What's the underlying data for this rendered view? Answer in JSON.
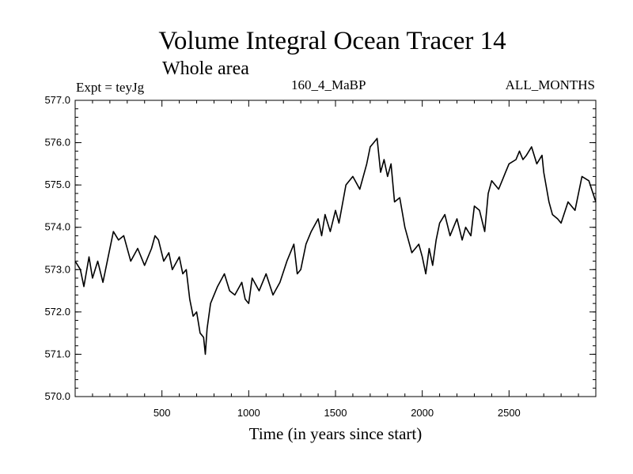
{
  "header": {
    "title": "Volume Integral Ocean Tracer 14",
    "subtitle": "Whole area",
    "expt": "Expt = teyJg",
    "run": "160_4_MaBP",
    "months": "ALL_MONTHS"
  },
  "chart_data": {
    "type": "line",
    "title": "Volume Integral Ocean Tracer 14",
    "subtitle": "Whole area",
    "xlabel": "Time (in years since start)",
    "ylabel": "",
    "xlim": [
      0,
      3000
    ],
    "ylim": [
      570.0,
      577.0
    ],
    "xticks": [
      500,
      1000,
      1500,
      2000,
      2500
    ],
    "yticks": [
      "570.0",
      "571.0",
      "572.0",
      "573.0",
      "574.0",
      "575.0",
      "576.0",
      "577.0"
    ],
    "grid": false,
    "series": [
      {
        "name": "Volume Integral Ocean Tracer 14",
        "x": [
          0,
          30,
          50,
          80,
          100,
          130,
          160,
          190,
          220,
          250,
          280,
          320,
          360,
          400,
          440,
          460,
          480,
          510,
          540,
          560,
          600,
          620,
          640,
          660,
          680,
          700,
          720,
          740,
          750,
          760,
          780,
          820,
          860,
          890,
          920,
          960,
          980,
          1000,
          1020,
          1060,
          1100,
          1140,
          1180,
          1220,
          1260,
          1280,
          1300,
          1330,
          1360,
          1400,
          1420,
          1440,
          1470,
          1500,
          1520,
          1560,
          1600,
          1640,
          1680,
          1700,
          1720,
          1740,
          1760,
          1780,
          1800,
          1820,
          1840,
          1870,
          1900,
          1940,
          1980,
          2000,
          2020,
          2040,
          2060,
          2080,
          2100,
          2130,
          2160,
          2200,
          2230,
          2250,
          2280,
          2300,
          2330,
          2360,
          2380,
          2400,
          2440,
          2480,
          2500,
          2540,
          2560,
          2580,
          2600,
          2630,
          2660,
          2690,
          2700,
          2730,
          2750,
          2780,
          2800,
          2840,
          2880,
          2920,
          2960,
          3000
        ],
        "y": [
          573.2,
          573.0,
          572.6,
          573.3,
          572.8,
          573.2,
          572.7,
          573.3,
          573.9,
          573.7,
          573.8,
          573.2,
          573.5,
          573.1,
          573.5,
          573.8,
          573.7,
          573.2,
          573.4,
          573.0,
          573.3,
          572.9,
          573.0,
          572.3,
          571.9,
          572.0,
          571.5,
          571.4,
          571.0,
          571.6,
          572.2,
          572.6,
          572.9,
          572.5,
          572.4,
          572.7,
          572.3,
          572.2,
          572.8,
          572.5,
          572.9,
          572.4,
          572.7,
          573.2,
          573.6,
          572.9,
          573.0,
          573.6,
          573.9,
          574.2,
          573.8,
          574.3,
          573.9,
          574.4,
          574.1,
          575.0,
          575.2,
          574.9,
          575.5,
          575.9,
          576.0,
          576.1,
          575.3,
          575.6,
          575.2,
          575.5,
          574.6,
          574.7,
          574.0,
          573.4,
          573.6,
          573.3,
          572.9,
          573.5,
          573.1,
          573.7,
          574.1,
          574.3,
          573.8,
          574.2,
          573.7,
          574.0,
          573.8,
          574.5,
          574.4,
          573.9,
          574.8,
          575.1,
          574.9,
          575.3,
          575.5,
          575.6,
          575.8,
          575.6,
          575.7,
          575.9,
          575.5,
          575.7,
          575.3,
          574.6,
          574.3,
          574.2,
          574.1,
          574.6,
          574.4,
          575.2,
          575.1,
          574.6
        ]
      }
    ]
  }
}
